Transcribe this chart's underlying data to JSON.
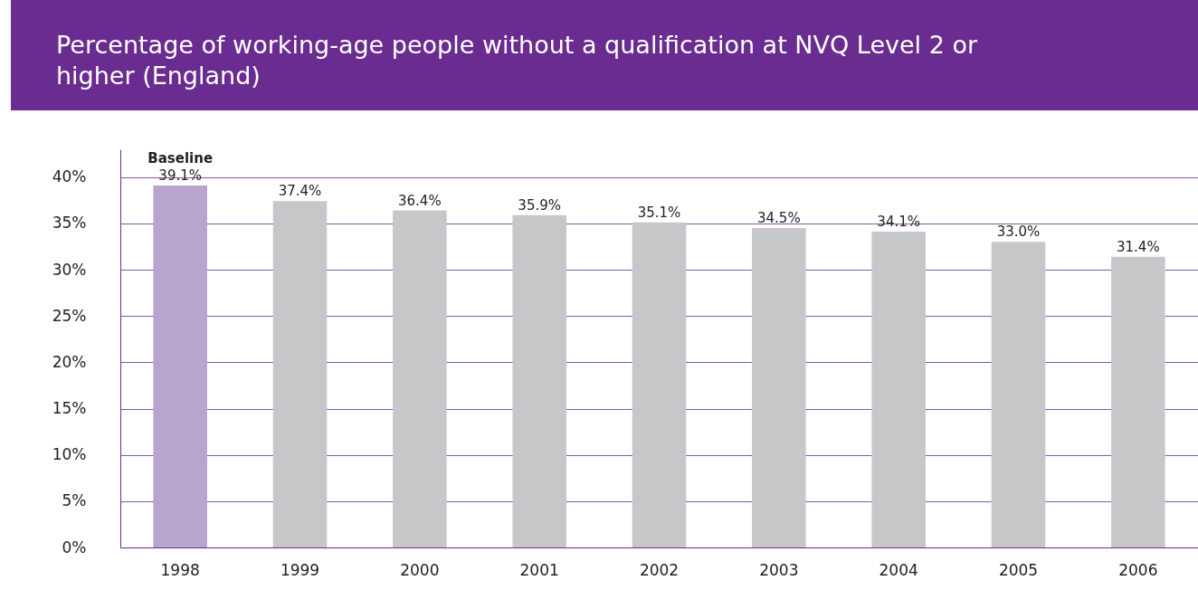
{
  "chart_data": {
    "type": "bar",
    "title": "Percentage of working-age people without a qualification at NVQ Level 2 or higher (England)",
    "categories": [
      "1998",
      "1999",
      "2000",
      "2001",
      "2002",
      "2003",
      "2004",
      "2005",
      "2006"
    ],
    "values": [
      39.1,
      37.4,
      36.4,
      35.9,
      35.1,
      34.5,
      34.1,
      33.0,
      31.4
    ],
    "value_labels": [
      "39.1%",
      "37.4%",
      "36.4%",
      "35.9%",
      "35.1%",
      "34.5%",
      "34.1%",
      "33.0%",
      "31.4%"
    ],
    "colors": [
      "#b9a3cf",
      "#c6c7c9",
      "#c6c7c9",
      "#c6c7c9",
      "#c6c7c9",
      "#c6c7c9",
      "#c6c7c9",
      "#c6c7c9",
      "#c6c7c9"
    ],
    "annotations": [
      {
        "text": "Baseline",
        "x": "1998",
        "y": 39.1
      }
    ],
    "ylim": [
      0,
      43
    ],
    "yticks": [
      {
        "value": 0,
        "label": "0%"
      },
      {
        "value": 5,
        "label": "5%"
      },
      {
        "value": 10,
        "label": "10%"
      },
      {
        "value": 15,
        "label": "15%"
      },
      {
        "value": 20,
        "label": "20%"
      },
      {
        "value": 25,
        "label": "25%"
      },
      {
        "value": 30,
        "label": "30%"
      },
      {
        "value": 35,
        "label": "35%"
      },
      {
        "value": 40,
        "label": "40%"
      }
    ],
    "grid": "y"
  }
}
